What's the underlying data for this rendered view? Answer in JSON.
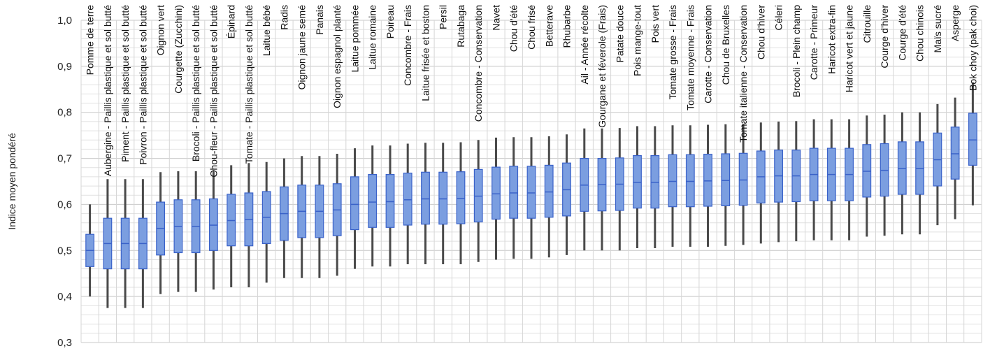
{
  "chart_data": {
    "type": "boxplot",
    "ylabel": "Indice moyen pondéré",
    "ylim": [
      0.3,
      1.0
    ],
    "yticks": [
      "0,3",
      "0,4",
      "0,5",
      "0,6",
      "0,7",
      "0,8",
      "0,9",
      "1,0"
    ],
    "grid": true,
    "colors": {
      "box_fill": "#7b9ee0",
      "box_stroke": "#3a62c9",
      "whisker": "#4a4a4a",
      "grid": "#d0d0d0"
    },
    "categories": [
      "Pomme de terre",
      "Aubergine - Paillis plastique et sol butté",
      "Piment - Paillis plastique et sol butté",
      "Poivron - Paillis plastique et sol butté",
      "Oignon vert",
      "Courgette (Zucchini)",
      "Brocoli - Paillis plastique et sol butté",
      "Chou-fleur - Paillis plastique et sol butté",
      "Épinard",
      "Tomate - Paillis plastique et sol butté",
      "Laitue bébé",
      "Radis",
      "Oignon jaune semé",
      "Panais",
      "Oignon espagnol planté",
      "Laitue pommée",
      "Laitue romaine",
      "Poireau",
      "Concombre - Frais",
      "Laitue frisée et boston",
      "Persil",
      "Rutabaga",
      "Concombre - Conservation",
      "Navet",
      "Chou d'été",
      "Chou frisé",
      "Betterave",
      "Rhubarbe",
      "Ail - Année récolte",
      "Gourgane et féverole (Frais)",
      "Patate douce",
      "Pois mange-tout",
      "Pois vert",
      "Tomate grosse - Frais",
      "Tomate moyenne - Frais",
      "Carotte - Conservation",
      "Chou de Bruxelles",
      "Tomate italienne - Conservation",
      "Chou d'hiver",
      "Céleri",
      "Brocoli - Plein champ",
      "Carotte - Primeur",
      "Haricot extra-fin",
      "Haricot vert et jaune",
      "Citrouille",
      "Courge d'hiver",
      "Courge d'été",
      "Chou chinois",
      "Maïs sucré",
      "Asperge",
      "Bok choy (pak choi)"
    ],
    "boxes": [
      {
        "min": 0.4,
        "q1": 0.465,
        "median": 0.5,
        "q3": 0.535,
        "max": 0.6
      },
      {
        "min": 0.375,
        "q1": 0.46,
        "median": 0.515,
        "q3": 0.57,
        "max": 0.655
      },
      {
        "min": 0.375,
        "q1": 0.46,
        "median": 0.515,
        "q3": 0.57,
        "max": 0.655
      },
      {
        "min": 0.375,
        "q1": 0.46,
        "median": 0.515,
        "q3": 0.57,
        "max": 0.655
      },
      {
        "min": 0.405,
        "q1": 0.49,
        "median": 0.548,
        "q3": 0.605,
        "max": 0.67
      },
      {
        "min": 0.41,
        "q1": 0.495,
        "median": 0.552,
        "q3": 0.61,
        "max": 0.672
      },
      {
        "min": 0.41,
        "q1": 0.495,
        "median": 0.552,
        "q3": 0.61,
        "max": 0.672
      },
      {
        "min": 0.415,
        "q1": 0.5,
        "median": 0.555,
        "q3": 0.612,
        "max": 0.675
      },
      {
        "min": 0.42,
        "q1": 0.51,
        "median": 0.565,
        "q3": 0.622,
        "max": 0.685
      },
      {
        "min": 0.42,
        "q1": 0.51,
        "median": 0.567,
        "q3": 0.625,
        "max": 0.69
      },
      {
        "min": 0.43,
        "q1": 0.515,
        "median": 0.572,
        "q3": 0.628,
        "max": 0.692
      },
      {
        "min": 0.44,
        "q1": 0.522,
        "median": 0.58,
        "q3": 0.638,
        "max": 0.7
      },
      {
        "min": 0.44,
        "q1": 0.528,
        "median": 0.585,
        "q3": 0.642,
        "max": 0.705
      },
      {
        "min": 0.44,
        "q1": 0.528,
        "median": 0.585,
        "q3": 0.642,
        "max": 0.705
      },
      {
        "min": 0.445,
        "q1": 0.532,
        "median": 0.588,
        "q3": 0.645,
        "max": 0.71
      },
      {
        "min": 0.46,
        "q1": 0.545,
        "median": 0.6,
        "q3": 0.66,
        "max": 0.722
      },
      {
        "min": 0.465,
        "q1": 0.55,
        "median": 0.605,
        "q3": 0.665,
        "max": 0.728
      },
      {
        "min": 0.465,
        "q1": 0.55,
        "median": 0.606,
        "q3": 0.665,
        "max": 0.728
      },
      {
        "min": 0.47,
        "q1": 0.555,
        "median": 0.61,
        "q3": 0.668,
        "max": 0.732
      },
      {
        "min": 0.47,
        "q1": 0.557,
        "median": 0.612,
        "q3": 0.67,
        "max": 0.734
      },
      {
        "min": 0.47,
        "q1": 0.557,
        "median": 0.612,
        "q3": 0.67,
        "max": 0.734
      },
      {
        "min": 0.47,
        "q1": 0.558,
        "median": 0.613,
        "q3": 0.671,
        "max": 0.735
      },
      {
        "min": 0.475,
        "q1": 0.562,
        "median": 0.618,
        "q3": 0.676,
        "max": 0.74
      },
      {
        "min": 0.48,
        "q1": 0.568,
        "median": 0.623,
        "q3": 0.681,
        "max": 0.745
      },
      {
        "min": 0.482,
        "q1": 0.57,
        "median": 0.625,
        "q3": 0.683,
        "max": 0.746
      },
      {
        "min": 0.482,
        "q1": 0.57,
        "median": 0.625,
        "q3": 0.683,
        "max": 0.746
      },
      {
        "min": 0.485,
        "q1": 0.572,
        "median": 0.627,
        "q3": 0.685,
        "max": 0.748
      },
      {
        "min": 0.49,
        "q1": 0.575,
        "median": 0.632,
        "q3": 0.69,
        "max": 0.752
      },
      {
        "min": 0.5,
        "q1": 0.585,
        "median": 0.642,
        "q3": 0.7,
        "max": 0.765
      },
      {
        "min": 0.5,
        "q1": 0.586,
        "median": 0.643,
        "q3": 0.7,
        "max": 0.765
      },
      {
        "min": 0.5,
        "q1": 0.587,
        "median": 0.644,
        "q3": 0.701,
        "max": 0.766
      },
      {
        "min": 0.505,
        "q1": 0.592,
        "median": 0.648,
        "q3": 0.706,
        "max": 0.77
      },
      {
        "min": 0.505,
        "q1": 0.592,
        "median": 0.648,
        "q3": 0.706,
        "max": 0.77
      },
      {
        "min": 0.508,
        "q1": 0.595,
        "median": 0.65,
        "q3": 0.708,
        "max": 0.772
      },
      {
        "min": 0.508,
        "q1": 0.595,
        "median": 0.65,
        "q3": 0.708,
        "max": 0.772
      },
      {
        "min": 0.508,
        "q1": 0.596,
        "median": 0.651,
        "q3": 0.709,
        "max": 0.773
      },
      {
        "min": 0.51,
        "q1": 0.597,
        "median": 0.652,
        "q3": 0.71,
        "max": 0.774
      },
      {
        "min": 0.512,
        "q1": 0.598,
        "median": 0.653,
        "q3": 0.711,
        "max": 0.775
      },
      {
        "min": 0.515,
        "q1": 0.603,
        "median": 0.66,
        "q3": 0.716,
        "max": 0.778
      },
      {
        "min": 0.518,
        "q1": 0.605,
        "median": 0.662,
        "q3": 0.718,
        "max": 0.78
      },
      {
        "min": 0.52,
        "q1": 0.606,
        "median": 0.662,
        "q3": 0.718,
        "max": 0.781
      },
      {
        "min": 0.522,
        "q1": 0.608,
        "median": 0.665,
        "q3": 0.722,
        "max": 0.785
      },
      {
        "min": 0.522,
        "q1": 0.608,
        "median": 0.665,
        "q3": 0.722,
        "max": 0.785
      },
      {
        "min": 0.522,
        "q1": 0.608,
        "median": 0.665,
        "q3": 0.722,
        "max": 0.785
      },
      {
        "min": 0.53,
        "q1": 0.616,
        "median": 0.672,
        "q3": 0.73,
        "max": 0.793
      },
      {
        "min": 0.532,
        "q1": 0.618,
        "median": 0.674,
        "q3": 0.732,
        "max": 0.795
      },
      {
        "min": 0.535,
        "q1": 0.622,
        "median": 0.678,
        "q3": 0.736,
        "max": 0.8
      },
      {
        "min": 0.535,
        "q1": 0.622,
        "median": 0.678,
        "q3": 0.736,
        "max": 0.8
      },
      {
        "min": 0.555,
        "q1": 0.64,
        "median": 0.697,
        "q3": 0.755,
        "max": 0.818
      },
      {
        "min": 0.568,
        "q1": 0.655,
        "median": 0.71,
        "q3": 0.768,
        "max": 0.832
      },
      {
        "min": 0.598,
        "q1": 0.685,
        "median": 0.74,
        "q3": 0.798,
        "max": 0.865
      }
    ]
  }
}
